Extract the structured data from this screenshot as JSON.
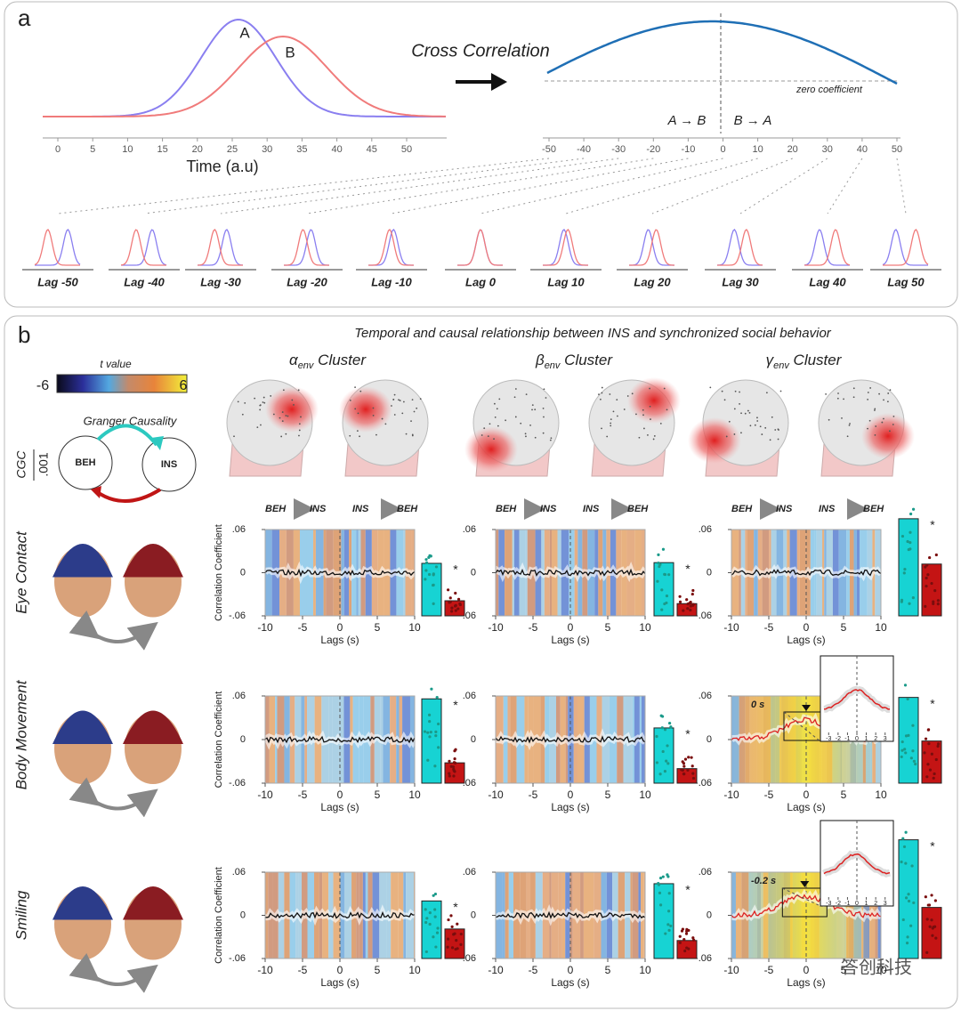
{
  "panel_a": {
    "label": "a",
    "curve_labels": [
      "A",
      "B"
    ],
    "time_ticks": [
      0,
      5,
      10,
      15,
      20,
      25,
      30,
      35,
      40,
      45,
      50
    ],
    "time_xlim": [
      -2,
      56
    ],
    "time_axis_label": "Time (a.u)",
    "method": "Cross Correlation",
    "lag_ticks": [
      -50,
      -40,
      -30,
      -20,
      -10,
      0,
      10,
      20,
      30,
      40,
      50
    ],
    "zero_label": "zero coefficient",
    "direction_left": "A → B",
    "direction_right": "B → A",
    "lag_plots": [
      "Lag -50",
      "Lag -40",
      "Lag -30",
      "Lag -20",
      "Lag -10",
      "Lag 0",
      "Lag 10",
      "Lag 20",
      "Lag 30",
      "Lag 40",
      "Lag 50"
    ]
  },
  "panel_b": {
    "label": "b",
    "title": "Temporal and causal relationship between INS and synchronized social behavior",
    "colorbar": {
      "title": "t value",
      "min": -6,
      "max": 6
    },
    "granger": {
      "title": "Granger Causality",
      "source": "BEH",
      "target": "INS",
      "scale_label": "CGC",
      "scale_value": ".001"
    },
    "clusters": [
      {
        "symbol": "α",
        "subscript": "env",
        "suffix": " Cluster"
      },
      {
        "symbol": "β",
        "subscript": "env",
        "suffix": " Cluster"
      },
      {
        "symbol": "γ",
        "subscript": "env",
        "suffix": " Cluster"
      }
    ],
    "direction": {
      "beh": "BEH",
      "ins": "INS"
    },
    "behaviors": [
      "Eye Contact",
      "Body Movement",
      "Smiling"
    ],
    "y_axis_label": "Correlation Coefficient",
    "x_axis_label": "Lags (s)",
    "ylim": [
      -0.06,
      0.06
    ],
    "yticks": [
      {
        "value": 0.06,
        "label": ".06"
      },
      0,
      {
        "value": -0.06,
        "label": "-.06"
      }
    ],
    "xlim": [
      -10,
      10
    ],
    "xticks": [
      -10,
      -5,
      0,
      5,
      10
    ],
    "significance": "*",
    "bars": [
      [
        {
          "cyan": 0.013,
          "red": -0.039
        },
        {
          "cyan": 0.014,
          "red": -0.043
        },
        {
          "cyan": 0.075,
          "red": 0.012
        }
      ],
      [
        {
          "cyan": 0.056,
          "red": -0.032
        },
        {
          "cyan": 0.016,
          "red": -0.04
        },
        {
          "cyan": 0.058,
          "red": -0.002
        }
      ],
      [
        {
          "cyan": 0.02,
          "red": -0.019
        },
        {
          "cyan": 0.044,
          "red": -0.035
        },
        {
          "cyan": 0.105,
          "red": 0.011
        }
      ]
    ],
    "insets": [
      {
        "label": "0 s"
      },
      {
        "label": "-0.2 s"
      }
    ],
    "inset_ticks": [
      -3,
      -2,
      -1,
      0,
      1,
      2,
      3
    ],
    "inset_xlim": [
      -3.5,
      3.5
    ]
  },
  "watermark": "答创科技"
}
